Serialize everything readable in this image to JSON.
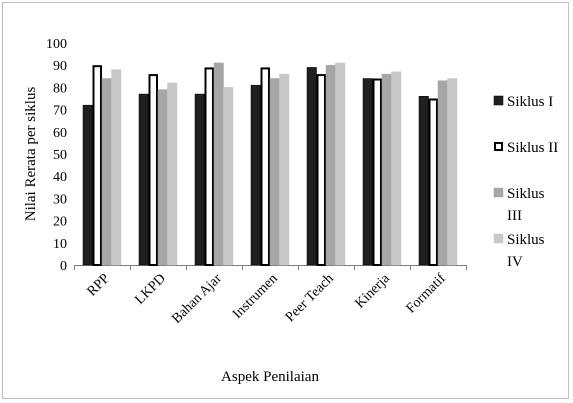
{
  "chart_data": {
    "type": "bar",
    "categories": [
      "RPP",
      "LKPD",
      "Bahan Ajar",
      "Instrumen",
      "Peer Teach",
      "Kinerja",
      "Formatif"
    ],
    "series": [
      {
        "name": "Siklus I",
        "values": [
          72,
          77,
          77,
          81,
          89,
          84,
          76
        ],
        "fill": "#1f1f1f",
        "stroke": "#000000"
      },
      {
        "name": "Siklus II",
        "values": [
          90,
          86,
          89,
          89,
          86,
          84,
          75
        ],
        "fill": "#ffffff",
        "stroke": "#000000"
      },
      {
        "name": "Siklus III",
        "values": [
          84,
          79,
          91,
          84,
          90,
          86,
          83
        ],
        "fill": "#a6a6a6",
        "stroke": "#a6a6a6"
      },
      {
        "name": "Siklus IV",
        "values": [
          88,
          82,
          80,
          86,
          91,
          87,
          84
        ],
        "fill": "#c8c8c8",
        "stroke": "#c8c8c8"
      }
    ],
    "yticks": [
      "0",
      "10",
      "20",
      "30",
      "40",
      "50",
      "60",
      "70",
      "80",
      "90",
      "100"
    ],
    "ylim": [
      0,
      100
    ],
    "xlabel": "Aspek Penilaian",
    "ylabel": "Nilai Rerata per siklus",
    "legend_position": "right",
    "legend_lines": [
      [
        "Siklus I"
      ],
      [
        "Siklus II"
      ],
      [
        "Siklus",
        "III"
      ],
      [
        "Siklus",
        "IV"
      ]
    ],
    "grid": false
  }
}
